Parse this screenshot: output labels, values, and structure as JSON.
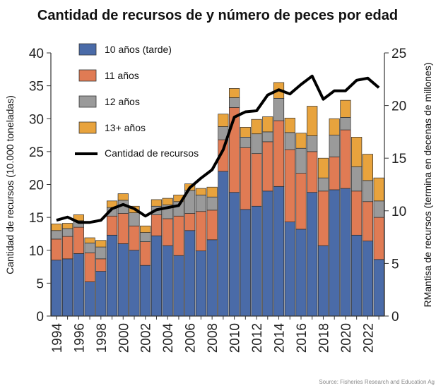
{
  "chart_data": {
    "type": "bar",
    "title": "Cantidad de recursos de  y número de peces por edad",
    "ylabel_left": "Cantidad de recursos (10.000 toneladas)",
    "ylabel_right": "RMantisa de recursos (termina en decenas de millones)",
    "source": "Source: Fisheries Research and Education Ag",
    "ylim_left": [
      0,
      40
    ],
    "ylim_right": [
      0,
      25
    ],
    "yticks_left": [
      "0",
      "5",
      "10",
      "15",
      "20",
      "25",
      "30",
      "35",
      "40"
    ],
    "yticks_right": [
      "0",
      "5",
      "10",
      "15",
      "20",
      "25"
    ],
    "categories": [
      "1994",
      "1995",
      "1996",
      "1997",
      "1998",
      "1999",
      "2000",
      "2001",
      "2002",
      "2003",
      "2004",
      "2005",
      "2006",
      "2007",
      "2008",
      "2009",
      "2010",
      "2011",
      "2012",
      "2013",
      "2014",
      "2015",
      "2016",
      "2017",
      "2018",
      "2019",
      "2020",
      "2021",
      "2022",
      "2023"
    ],
    "xtick_labels": [
      "1994",
      "1996",
      "1998",
      "2000",
      "2002",
      "2004",
      "2006",
      "2008",
      "2010",
      "2012",
      "2014",
      "2016",
      "2018",
      "2020",
      "2022"
    ],
    "legend_position": "top-left",
    "series": [
      {
        "name": "10 años (tarde)",
        "color": "#4a6ba8",
        "values": [
          8.5,
          8.7,
          9.5,
          5.2,
          6.8,
          12.3,
          11.0,
          10.0,
          7.7,
          12.2,
          10.7,
          9.2,
          13.0,
          9.9,
          11.6,
          22.0,
          18.8,
          16.2,
          16.7,
          19.0,
          19.7,
          14.3,
          13.2,
          18.8,
          10.7,
          19.2,
          19.4,
          12.3,
          11.4,
          8.6
        ]
      },
      {
        "name": "11 años",
        "color": "#e07b54",
        "values": [
          3.2,
          3.4,
          4.0,
          4.4,
          1.9,
          2.9,
          4.6,
          3.7,
          3.6,
          3.2,
          4.1,
          6.0,
          2.6,
          6.0,
          4.5,
          4.8,
          12.9,
          9.4,
          8.0,
          7.5,
          10.0,
          11.0,
          8.5,
          6.2,
          8.3,
          5.0,
          8.9,
          6.7,
          6.0,
          6.4
        ]
      },
      {
        "name": "12 años",
        "color": "#9a9a9a",
        "values": [
          1.3,
          1.2,
          1.0,
          1.5,
          1.8,
          1.3,
          2.0,
          2.0,
          1.4,
          1.3,
          2.1,
          2.2,
          3.5,
          2.5,
          2.0,
          2.0,
          1.5,
          1.6,
          3.0,
          1.5,
          3.4,
          2.6,
          3.8,
          2.4,
          2.0,
          3.3,
          1.9,
          3.7,
          3.2,
          2.5
        ]
      },
      {
        "name": "13+ años",
        "color": "#e8a33d",
        "values": [
          1.0,
          0.8,
          0.9,
          0.8,
          1.0,
          1.0,
          1.0,
          1.0,
          1.0,
          1.0,
          1.0,
          1.0,
          1.0,
          1.0,
          1.5,
          1.9,
          1.4,
          1.5,
          2.2,
          2.3,
          2.4,
          2.2,
          2.3,
          4.5,
          3.0,
          2.5,
          2.6,
          4.5,
          4.0,
          3.5
        ]
      },
      {
        "name": "Cantidad de recursos",
        "type": "line",
        "axis": "right",
        "color": "#000000",
        "values": [
          9.1,
          9.4,
          8.9,
          8.9,
          9.1,
          10.2,
          10.6,
          10.2,
          9.5,
          10.1,
          10.3,
          10.5,
          12.2,
          13.1,
          13.9,
          15.8,
          18.9,
          19.4,
          19.5,
          21.0,
          21.5,
          21.1,
          22.0,
          22.8,
          20.6,
          21.4,
          21.4,
          22.4,
          22.6,
          21.7
        ]
      }
    ]
  }
}
